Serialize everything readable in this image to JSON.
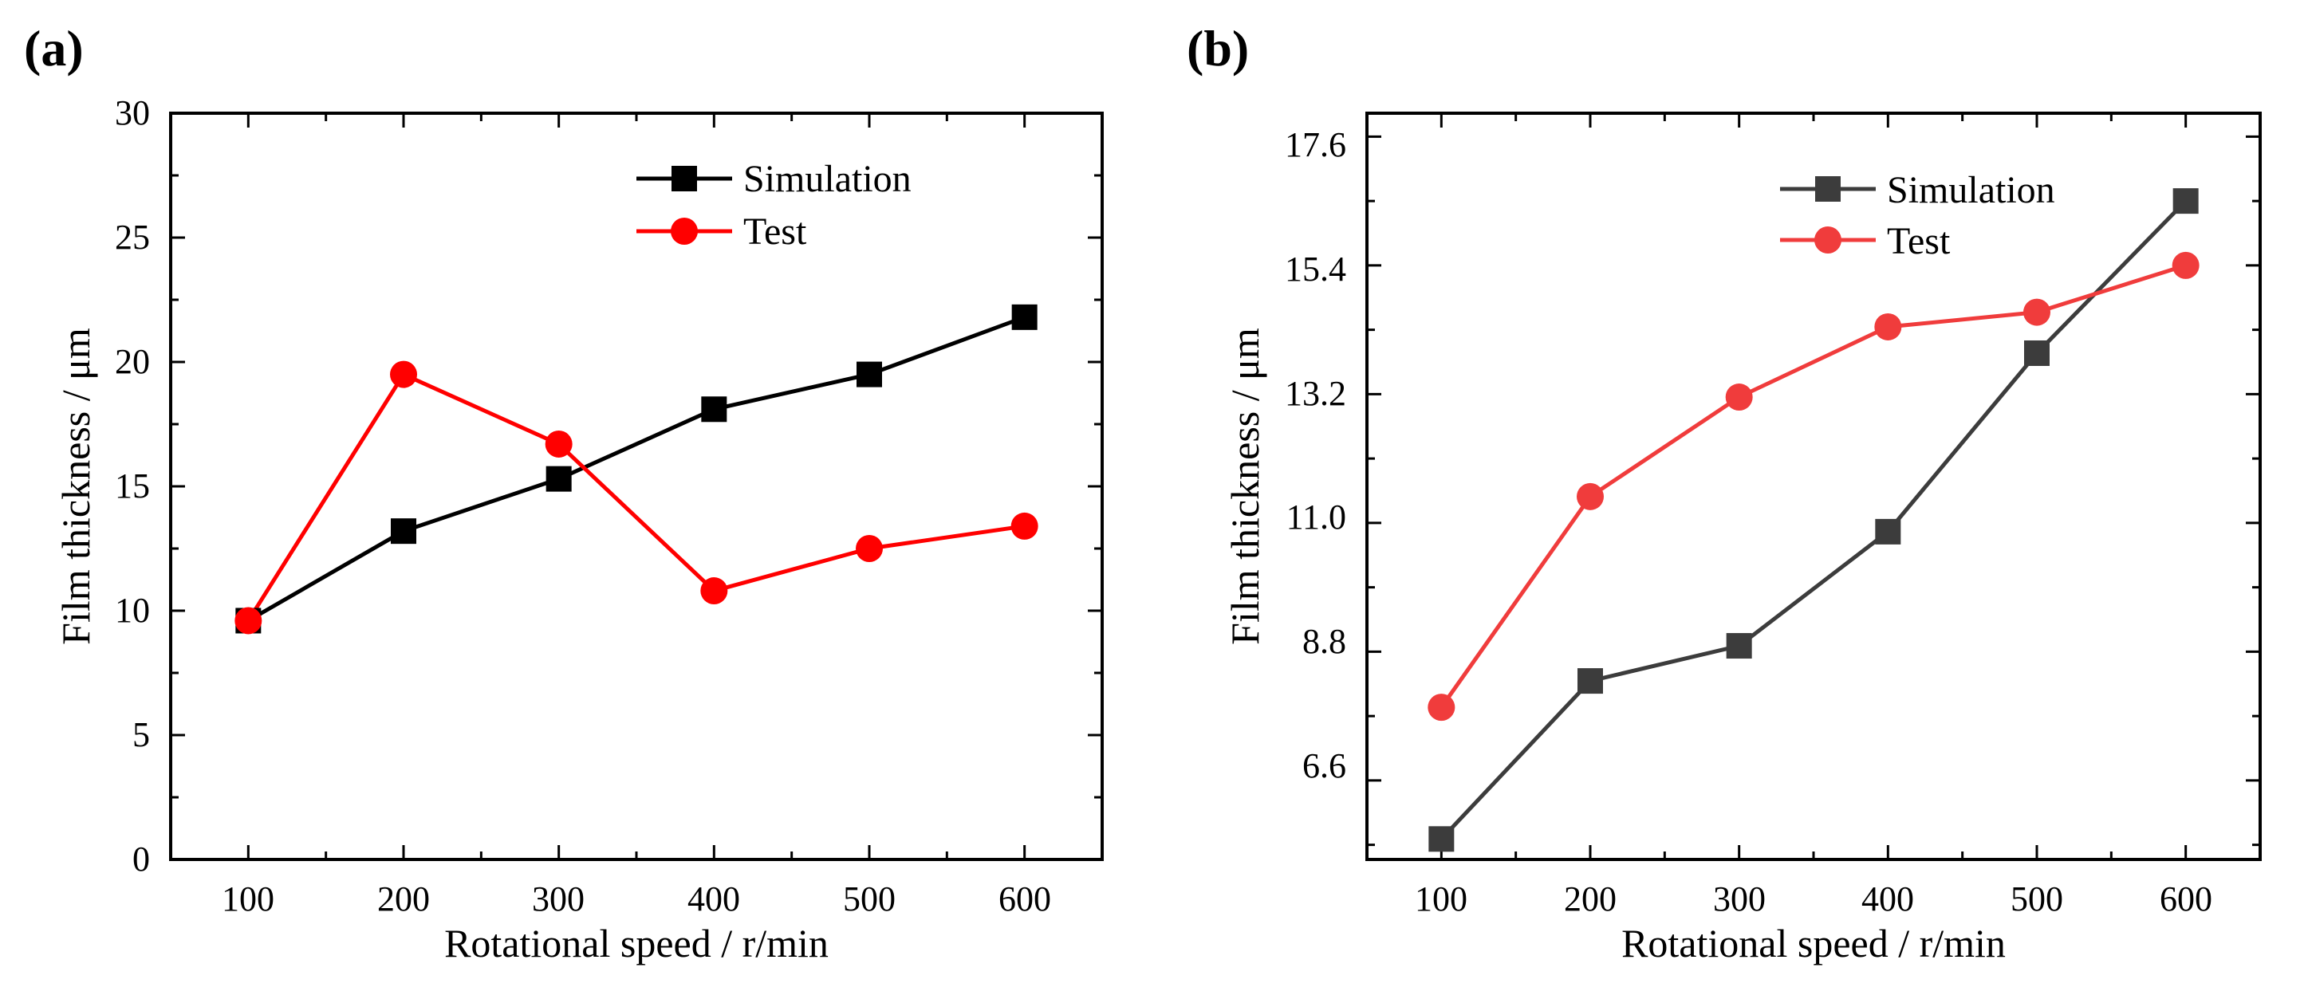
{
  "colors": {
    "a_sim": "#000000",
    "a_test": "#ff0000",
    "b_sim": "#3c3c3c",
    "b_test": "#f03c3c"
  },
  "chart_data": [
    {
      "panel_label": "(a)",
      "type": "line",
      "title": "",
      "xlabel": "Rotational speed / r/min",
      "ylabel": "Film thickness / μm",
      "x": [
        100,
        200,
        300,
        400,
        500,
        600
      ],
      "xlim": [
        50,
        650
      ],
      "ylim": [
        0,
        30
      ],
      "xticks": [
        "100",
        "200",
        "300",
        "400",
        "500",
        "600"
      ],
      "yticks": [
        "0",
        "5",
        "10",
        "15",
        "20",
        "25",
        "30"
      ],
      "grid": false,
      "legend_position": "top-right",
      "series": [
        {
          "name": "Simulation",
          "marker": "square",
          "values": [
            9.6,
            13.2,
            15.3,
            18.1,
            19.5,
            21.8
          ]
        },
        {
          "name": "Test",
          "marker": "circle",
          "values": [
            9.6,
            19.5,
            16.7,
            10.8,
            12.5,
            13.4
          ]
        }
      ]
    },
    {
      "panel_label": "(b)",
      "type": "line",
      "title": "",
      "xlabel": "Rotational speed / r/min",
      "ylabel": "Film thickness / μm",
      "x": [
        100,
        200,
        300,
        400,
        500,
        600
      ],
      "xlim": [
        50,
        650
      ],
      "ylim": [
        5.25,
        18.0
      ],
      "xticks": [
        "100",
        "200",
        "300",
        "400",
        "500",
        "600"
      ],
      "yticks": [
        "6.6",
        "8.8",
        "11.0",
        "13.2",
        "15.4",
        "17.6"
      ],
      "grid": false,
      "legend_position": "top-right",
      "series": [
        {
          "name": "Simulation",
          "marker": "square",
          "values": [
            5.6,
            8.3,
            8.9,
            10.85,
            13.9,
            16.5
          ]
        },
        {
          "name": "Test",
          "marker": "circle",
          "values": [
            7.85,
            11.45,
            13.15,
            14.35,
            14.6,
            15.4
          ]
        }
      ]
    }
  ]
}
